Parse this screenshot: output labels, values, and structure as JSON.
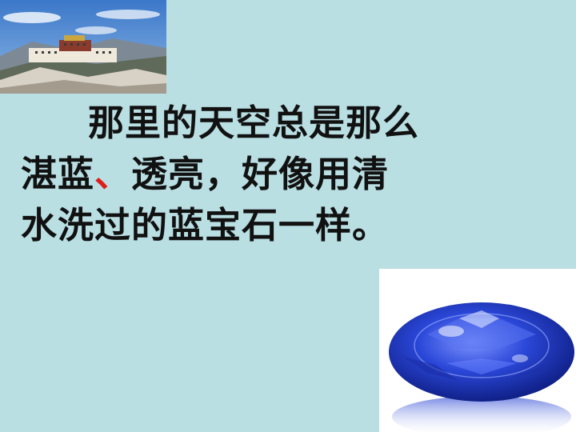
{
  "passage": {
    "line1": "那里的天空总是那么",
    "line2_part1": "湛蓝",
    "line2_mark": "、",
    "line2_part2": "透亮，好像用清",
    "line3": "水洗过的蓝宝石一样。"
  },
  "images": {
    "top_left": "potala-palace-photo",
    "bottom_right": "blue-sapphire-photo"
  },
  "colors": {
    "background": "#b9dfe3",
    "text": "#111111",
    "accent_mark": "#e11a1a",
    "sapphire": "#2a47d8"
  }
}
